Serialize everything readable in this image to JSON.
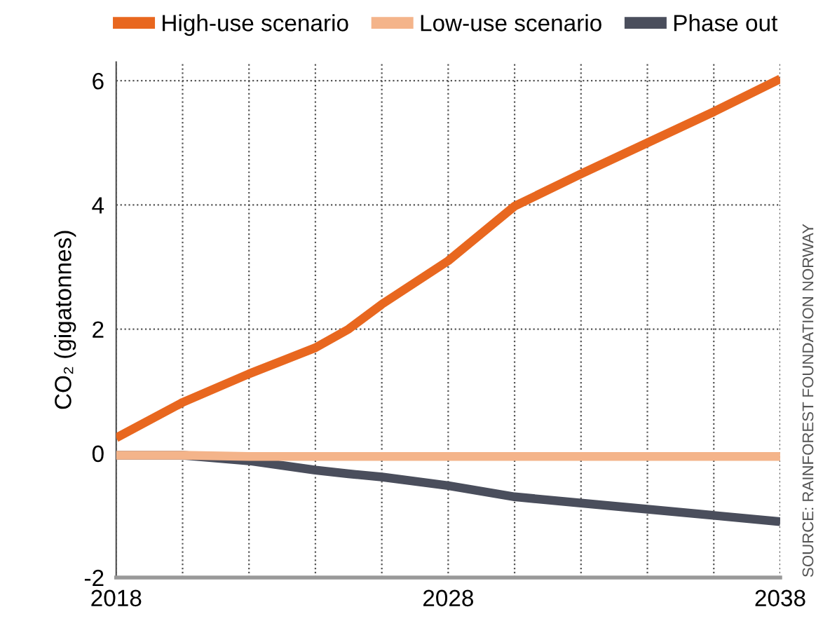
{
  "chart_data": {
    "type": "line",
    "ylabel": "CO₂ (gigatonnes)",
    "annotations": [
      "SOURCE: RAINFOREST FOUNDATION NORWAY"
    ],
    "x": [
      2018,
      2020,
      2022,
      2024,
      2025,
      2026,
      2028,
      2030,
      2032,
      2034,
      2036,
      2038
    ],
    "series": [
      {
        "name": "High-use scenario",
        "color": "#e8671f",
        "values": [
          0.25,
          0.82,
          1.28,
          1.7,
          2.0,
          2.4,
          3.1,
          3.98,
          4.5,
          5.0,
          5.5,
          6.03
        ]
      },
      {
        "name": "Low-use scenario",
        "color": "#f4b48a",
        "values": [
          -0.03,
          -0.03,
          -0.05,
          -0.05,
          -0.05,
          -0.05,
          -0.05,
          -0.05,
          -0.05,
          -0.05,
          -0.05,
          -0.05
        ]
      },
      {
        "name": "Phase out",
        "color": "#4a4e5c",
        "values": [
          -0.03,
          -0.03,
          -0.12,
          -0.27,
          -0.33,
          -0.38,
          -0.52,
          -0.7,
          -0.8,
          -0.9,
          -1.0,
          -1.1
        ]
      }
    ],
    "xlim": [
      2018,
      2038
    ],
    "ylim": [
      -2,
      6.3
    ],
    "xticks": [
      2018,
      {
        "value": 2020,
        "label": null
      },
      {
        "value": 2022,
        "label": null
      },
      {
        "value": 2024,
        "label": null
      },
      {
        "value": 2026,
        "label": null
      },
      2028,
      {
        "value": 2030,
        "label": null
      },
      {
        "value": 2032,
        "label": null
      },
      {
        "value": 2034,
        "label": null
      },
      {
        "value": 2036,
        "label": null
      },
      2038
    ],
    "yticks": [
      -2,
      0,
      2,
      4,
      6
    ],
    "grid": true,
    "legend": "top",
    "line_style": "solid",
    "marker": "none"
  }
}
